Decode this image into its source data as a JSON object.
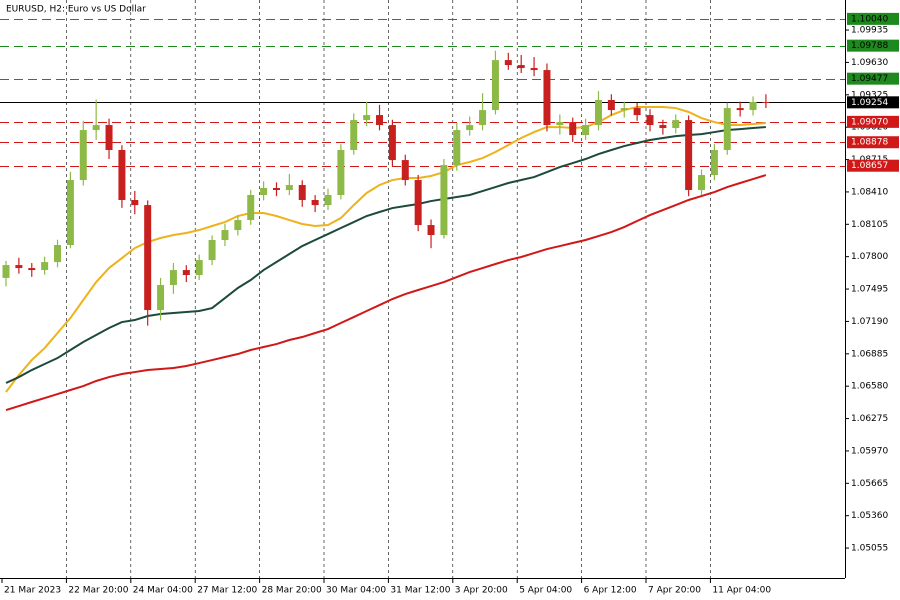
{
  "chart_data": {
    "type": "candlestick",
    "title": "EURUSD, H2:  Euro vs US Dollar",
    "categories": [
      "21 Mar 2023",
      null,
      null,
      null,
      null,
      "22 Mar 20:00",
      null,
      null,
      null,
      null,
      "24 Mar 04:00",
      null,
      null,
      null,
      null,
      "27 Mar 12:00",
      null,
      null,
      null,
      null,
      "28 Mar 20:00",
      null,
      null,
      null,
      null,
      "30 Mar 04:00",
      null,
      null,
      null,
      null,
      "31 Mar 12:00",
      null,
      null,
      null,
      null,
      "3 Apr 20:00",
      null,
      null,
      null,
      null,
      "5 Apr 04:00",
      null,
      null,
      null,
      null,
      "6 Apr 12:00",
      null,
      null,
      null,
      null,
      "7 Apr 20:00",
      null,
      null,
      null,
      null,
      "11 Apr 04:00",
      null,
      null,
      null,
      null
    ],
    "open": [
      1.076,
      1.07721,
      1.07693,
      1.07674,
      1.07749,
      1.0791,
      1.08522,
      1.08993,
      1.0904,
      1.08805,
      1.08334,
      1.08286,
      1.07297,
      1.07533,
      1.07674,
      1.07627,
      1.07768,
      1.07957,
      1.08051,
      1.08145,
      1.08381,
      1.08447,
      1.08428,
      1.08475,
      1.08334,
      1.08286,
      1.08381,
      1.08805,
      1.09087,
      1.09134,
      1.0904,
      1.0871,
      1.08522,
      1.08098,
      1.08004,
      1.08663,
      1.08993,
      1.0904,
      1.09181,
      1.09652,
      1.09605,
      1.09577,
      1.09558,
      1.0904,
      1.09068,
      1.08946,
      1.0904,
      1.09276,
      1.09181,
      1.092,
      1.09134,
      1.0904,
      1.09012,
      1.09087,
      1.08428,
      1.08569,
      1.08805,
      1.092,
      1.09181,
      1.09257
    ],
    "high": [
      1.0776,
      1.0779,
      1.0774,
      1.078,
      1.0796,
      1.086,
      1.0908,
      1.0928,
      1.091,
      1.0885,
      1.0842,
      1.0833,
      1.076,
      1.0774,
      1.0772,
      1.0782,
      1.08,
      1.0811,
      1.0819,
      1.0843,
      1.0851,
      1.085,
      1.0858,
      1.0852,
      1.0838,
      1.0844,
      1.0886,
      1.0915,
      1.0926,
      1.0923,
      1.0909,
      1.0876,
      1.0857,
      1.0815,
      1.0872,
      1.0906,
      1.0912,
      1.0934,
      1.0974,
      1.0972,
      1.097,
      1.0968,
      1.0962,
      1.0914,
      1.0911,
      1.091,
      1.0936,
      1.0933,
      1.0926,
      1.0925,
      1.0919,
      1.0909,
      1.0914,
      1.0913,
      1.0862,
      1.0886,
      1.0925,
      1.0926,
      1.0931,
      1.0933
    ],
    "low": [
      1.0752,
      1.0764,
      1.0761,
      1.0763,
      1.077,
      1.0788,
      1.0847,
      1.089,
      1.0872,
      1.0826,
      1.082,
      1.0715,
      1.072,
      1.0745,
      1.0756,
      1.0758,
      1.0772,
      1.079,
      1.08,
      1.081,
      1.0833,
      1.0837,
      1.0838,
      1.0827,
      1.0822,
      1.0824,
      1.0834,
      1.0876,
      1.0903,
      1.0899,
      1.0865,
      1.0847,
      1.0804,
      1.0788,
      1.0797,
      1.0861,
      1.0894,
      1.0899,
      1.0914,
      1.0956,
      1.0953,
      1.095,
      1.0898,
      1.0895,
      1.0888,
      1.089,
      1.0899,
      1.0913,
      1.0911,
      1.0908,
      1.0898,
      1.0895,
      1.0896,
      1.0837,
      1.0838,
      1.0852,
      1.0876,
      1.0912,
      1.0913,
      1.092
    ],
    "close": [
      1.07721,
      1.07693,
      1.07674,
      1.07749,
      1.0791,
      1.08522,
      1.08993,
      1.0904,
      1.08805,
      1.08334,
      1.08286,
      1.07297,
      1.07533,
      1.07674,
      1.07627,
      1.07768,
      1.07957,
      1.08051,
      1.08145,
      1.08381,
      1.08447,
      1.08428,
      1.08475,
      1.08334,
      1.08286,
      1.08381,
      1.08805,
      1.09087,
      1.09134,
      1.0904,
      1.0871,
      1.08522,
      1.08098,
      1.08004,
      1.08663,
      1.08993,
      1.0904,
      1.09181,
      1.09652,
      1.09605,
      1.09577,
      1.09558,
      1.0904,
      1.09068,
      1.08946,
      1.0904,
      1.09276,
      1.09181,
      1.092,
      1.09134,
      1.0904,
      1.09012,
      1.09087,
      1.08428,
      1.08569,
      1.08805,
      1.092,
      1.09181,
      1.09257,
      1.09254
    ],
    "up_color": "#8dba47",
    "down_color": "#c8201e",
    "series": [
      {
        "color": "#eeb21c",
        "values": [
          1.06525,
          1.06685,
          1.06826,
          1.06939,
          1.07081,
          1.07222,
          1.07392,
          1.07561,
          1.07693,
          1.07787,
          1.07881,
          1.07938,
          1.07976,
          1.08004,
          1.08023,
          1.08051,
          1.08089,
          1.08126,
          1.08183,
          1.08211,
          1.08211,
          1.08183,
          1.08145,
          1.08108,
          1.08089,
          1.08098,
          1.08164,
          1.08286,
          1.084,
          1.08475,
          1.08522,
          1.08541,
          1.08541,
          1.0856,
          1.08597,
          1.08663,
          1.08692,
          1.08729,
          1.08786,
          1.08852,
          1.08918,
          1.08974,
          1.09021,
          1.09021,
          1.09012,
          1.09021,
          1.09068,
          1.09134,
          1.09181,
          1.0921,
          1.0921,
          1.0921,
          1.092,
          1.09163,
          1.09106,
          1.09068,
          1.0904,
          1.0904,
          1.0905,
          1.09059
        ]
      },
      {
        "color": "#1d4a3c",
        "values": [
          1.0661,
          1.06666,
          1.06732,
          1.06789,
          1.06845,
          1.06921,
          1.06996,
          1.07062,
          1.07128,
          1.07184,
          1.07203,
          1.07241,
          1.0726,
          1.07269,
          1.07279,
          1.07288,
          1.07316,
          1.0741,
          1.07505,
          1.0758,
          1.07674,
          1.0775,
          1.07825,
          1.079,
          1.07957,
          1.08013,
          1.0807,
          1.08126,
          1.08183,
          1.08221,
          1.08258,
          1.08277,
          1.08296,
          1.08324,
          1.08343,
          1.08362,
          1.08381,
          1.08418,
          1.08456,
          1.08494,
          1.08522,
          1.0855,
          1.08597,
          1.08644,
          1.08682,
          1.0872,
          1.08767,
          1.08805,
          1.08842,
          1.08871,
          1.08899,
          1.08918,
          1.08936,
          1.08946,
          1.08955,
          1.08974,
          1.08993,
          1.09002,
          1.09012,
          1.09021
        ]
      },
      {
        "color": "#d01818",
        "values": [
          1.06355,
          1.06393,
          1.06431,
          1.06468,
          1.06506,
          1.06544,
          1.06581,
          1.06629,
          1.06666,
          1.06695,
          1.06713,
          1.06732,
          1.06742,
          1.06751,
          1.0677,
          1.06798,
          1.06826,
          1.06855,
          1.06883,
          1.06921,
          1.06949,
          1.06977,
          1.07015,
          1.07043,
          1.07081,
          1.07118,
          1.07175,
          1.07231,
          1.07288,
          1.07344,
          1.07401,
          1.07448,
          1.07486,
          1.07523,
          1.07561,
          1.07608,
          1.07655,
          1.07693,
          1.07731,
          1.07768,
          1.07797,
          1.07834,
          1.07872,
          1.079,
          1.07929,
          1.07957,
          1.07994,
          1.08032,
          1.08079,
          1.08136,
          1.08192,
          1.08239,
          1.08286,
          1.08334,
          1.08371,
          1.08409,
          1.08456,
          1.08494,
          1.08531,
          1.08569
        ]
      }
    ],
    "ylim": [
      1.04773,
      1.10218
    ],
    "yticks": [
      1.09935,
      {
        "value": 1.0963,
        "label": "1.09630"
      },
      1.09325,
      {
        "value": 1.0902,
        "label": "1.09020"
      },
      1.08715,
      {
        "value": 1.0841,
        "label": "1.08410"
      },
      1.08105,
      {
        "value": 1.078,
        "label": "1.07800"
      },
      1.07495,
      {
        "value": 1.0719,
        "label": "1.07190"
      },
      1.06885,
      {
        "value": 1.0658,
        "label": "1.06580"
      },
      1.06275,
      {
        "value": 1.0597,
        "label": "1.05970"
      },
      1.05665,
      {
        "value": 1.0536,
        "label": "1.05360"
      },
      1.05055
    ],
    "levels": [
      {
        "value": 1.1004,
        "label": "1.10040",
        "color": "#1e8a1e",
        "dashed": true
      },
      {
        "value": 1.09788,
        "color": "#1e8a1e",
        "dashed": true
      },
      {
        "value": 1.09477,
        "color": "#1e8a1e",
        "dashed": true
      },
      {
        "value": 1.09254,
        "color": "#000000",
        "dashed": false
      },
      {
        "value": 1.0907,
        "label": "1.09070",
        "color": "#d01818",
        "dashed": true
      },
      {
        "value": 1.08878,
        "color": "#d01818",
        "dashed": true
      },
      {
        "value": 1.08657,
        "color": "#d01818",
        "dashed": true
      }
    ],
    "grid": true
  }
}
